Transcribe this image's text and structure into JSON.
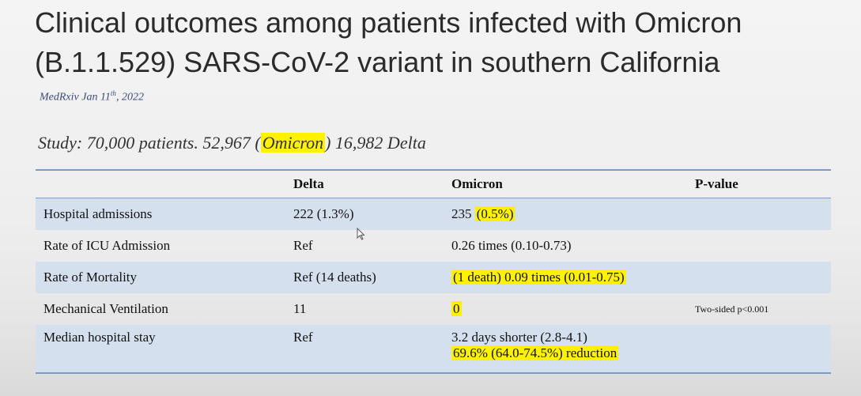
{
  "slide": {
    "title": "Clinical outcomes among patients infected with Omicron (B.1.1.529) SARS-CoV-2 variant in southern California",
    "source_prefix": "MedRxiv Jan 11",
    "source_sup": "th",
    "source_suffix": ", 2022",
    "study_prefix": "Study: 70,000 patients. 52,967 (",
    "study_highlight": "Omicron",
    "study_suffix": ") 16,982 Delta"
  },
  "table": {
    "headers": [
      "",
      "Delta",
      "Omicron",
      "P-value"
    ],
    "rows": [
      {
        "label": "Hospital admissions",
        "delta": "222 (1.3%)",
        "omicron_plain": "235 ",
        "omicron_highlight": "(0.5%)",
        "pvalue": ""
      },
      {
        "label": "Rate of ICU Admission",
        "delta": "Ref",
        "omicron_plain": "0.26 times  (0.10-0.73)",
        "omicron_highlight": "",
        "pvalue": ""
      },
      {
        "label": "Rate of Mortality",
        "delta": "Ref (14 deaths)",
        "omicron_plain": "",
        "omicron_highlight": "(1 death) 0.09 times  (0.01-0.75)",
        "pvalue": ""
      },
      {
        "label": "Mechanical Ventilation",
        "delta": "11",
        "omicron_plain": "",
        "omicron_highlight": "0",
        "pvalue": "Two-sided p<0.001"
      },
      {
        "label": "Median hospital stay",
        "delta": "Ref",
        "omicron_plain": "3.2 days shorter (2.8-4.1)",
        "omicron_highlight": "69.6% (64.0-74.5%) reduction",
        "pvalue": ""
      }
    ]
  },
  "colors": {
    "highlight": "#fff200",
    "row_shade": "#d5e0ee",
    "rule": "#7b9cc2"
  }
}
